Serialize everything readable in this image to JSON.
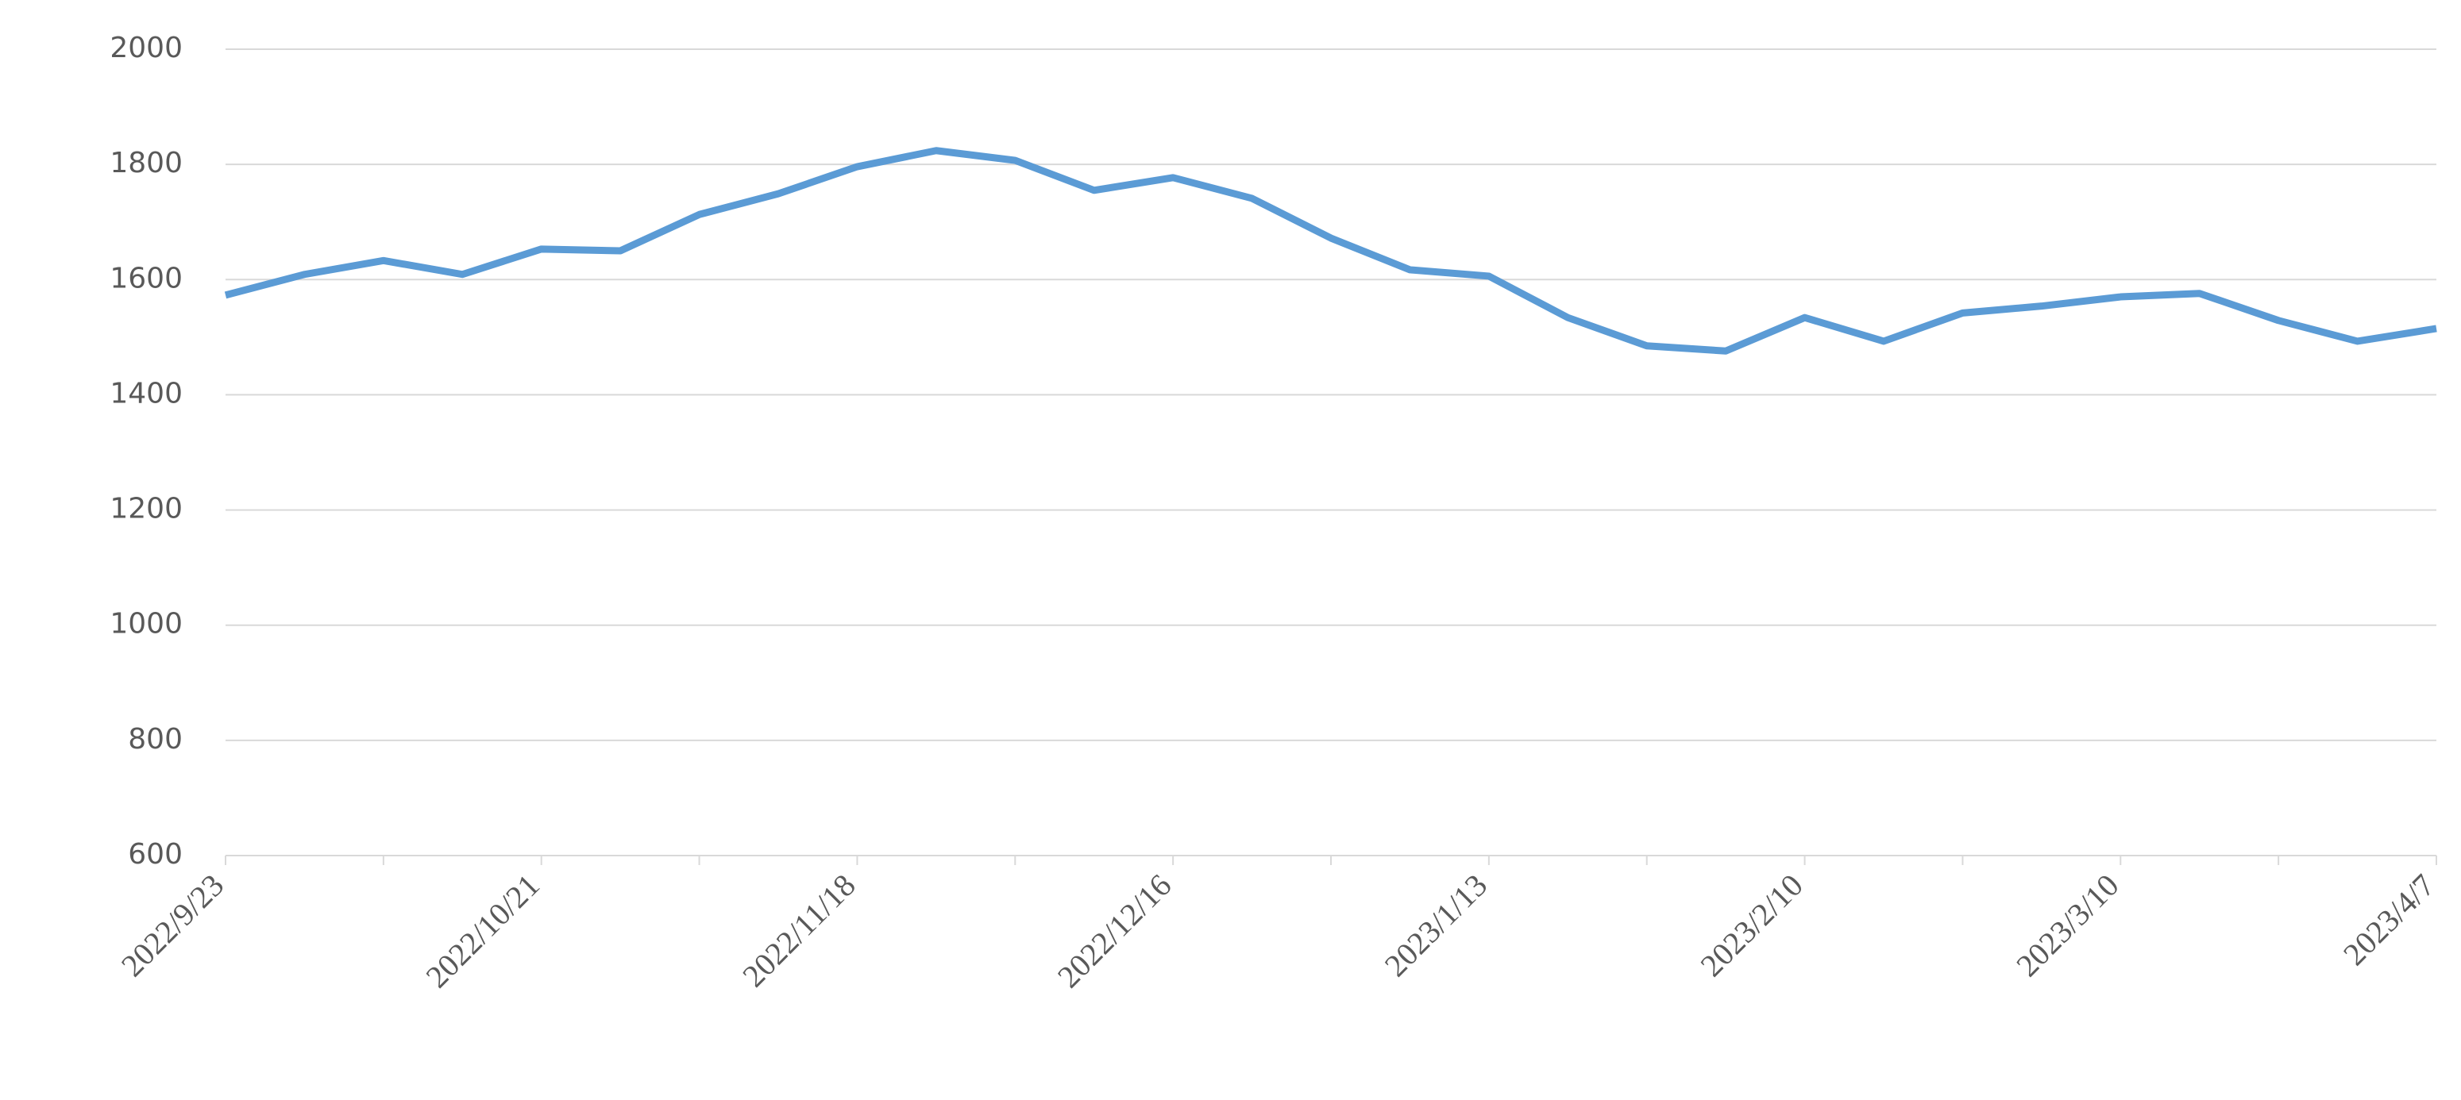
{
  "chart_data": {
    "type": "line",
    "categories": [
      "2022/9/23",
      null,
      null,
      null,
      "2022/10/21",
      null,
      null,
      null,
      "2022/11/18",
      null,
      null,
      null,
      "2022/12/16",
      null,
      null,
      null,
      "2023/1/13",
      null,
      null,
      null,
      "2023/2/10",
      null,
      null,
      null,
      "2023/3/10",
      null,
      null,
      null,
      "2023/4/7"
    ],
    "series": [
      {
        "color": "#5b9bd5",
        "values": [
          1573,
          1609,
          1633,
          1609,
          1653,
          1650,
          1713,
          1749,
          1796,
          1824,
          1807,
          1755,
          1777,
          1741,
          1672,
          1617,
          1606,
          1534,
          1485,
          1476,
          1534,
          1493,
          1542,
          1554,
          1570,
          1576,
          1529,
          1493,
          1515
        ]
      }
    ],
    "ylim": [
      600,
      2000
    ],
    "yticks": [
      600,
      800,
      1000,
      1200,
      1400,
      1600,
      1800,
      2000
    ],
    "grid": true
  }
}
